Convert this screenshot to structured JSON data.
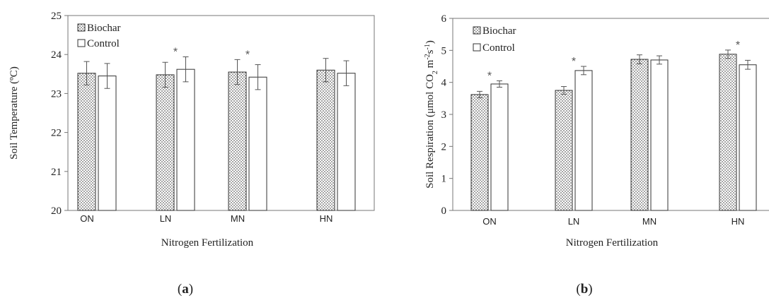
{
  "chart_data": [
    {
      "type": "bar",
      "panel": "(a)",
      "ylabel": "Soil Temperature (ºC)",
      "xlabel": "Nitrogen Fertilization",
      "ylim": [
        20,
        25
      ],
      "yticks": [
        20,
        21,
        22,
        23,
        24,
        25
      ],
      "categories": [
        "ON",
        "LN",
        "MN",
        "HN"
      ],
      "series": [
        {
          "name": "Biochar",
          "values": [
            23.52,
            23.48,
            23.55,
            23.6
          ],
          "errors": [
            0.3,
            0.32,
            0.32,
            0.3
          ]
        },
        {
          "name": "Control",
          "values": [
            23.45,
            23.62,
            23.42,
            23.52
          ],
          "errors": [
            0.32,
            0.32,
            0.32,
            0.32
          ]
        }
      ],
      "significance": [
        "",
        "*",
        "*",
        ""
      ],
      "legend": "top-left",
      "grid": false
    },
    {
      "type": "bar",
      "panel": "(b)",
      "ylabel": "Soil Respiration (μmol CO2 m-2s-1)",
      "xlabel": "Nitrogen Fertilization",
      "ylim": [
        0,
        6
      ],
      "yticks": [
        0,
        1,
        2,
        3,
        4,
        5,
        6
      ],
      "categories": [
        "ON",
        "LN",
        "MN",
        "HN"
      ],
      "series": [
        {
          "name": "Biochar",
          "values": [
            3.62,
            3.75,
            4.72,
            4.88
          ],
          "errors": [
            0.1,
            0.12,
            0.14,
            0.13
          ]
        },
        {
          "name": "Control",
          "values": [
            3.95,
            4.37,
            4.7,
            4.55
          ],
          "errors": [
            0.1,
            0.13,
            0.13,
            0.14
          ]
        }
      ],
      "significance": [
        "*",
        "*",
        "",
        "*"
      ],
      "legend": "top-left",
      "grid": false
    }
  ],
  "captions": {
    "a_open": "(",
    "a_letter": "a",
    "a_close": ")",
    "b_open": "(",
    "b_letter": "b",
    "b_close": ")"
  }
}
